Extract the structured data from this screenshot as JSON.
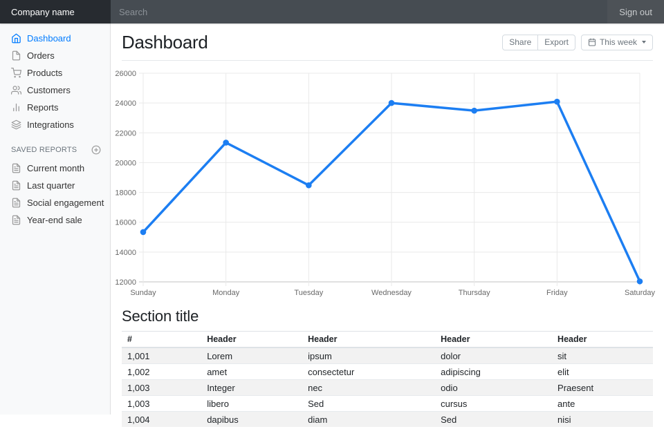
{
  "navbar": {
    "brand": "Company name",
    "search_placeholder": "Search",
    "sign_out": "Sign out"
  },
  "sidebar": {
    "items": [
      {
        "label": "Dashboard",
        "icon": "home-icon",
        "active": true
      },
      {
        "label": "Orders",
        "icon": "file-icon",
        "active": false
      },
      {
        "label": "Products",
        "icon": "shopping-cart-icon",
        "active": false
      },
      {
        "label": "Customers",
        "icon": "users-icon",
        "active": false
      },
      {
        "label": "Reports",
        "icon": "bar-chart-icon",
        "active": false
      },
      {
        "label": "Integrations",
        "icon": "layers-icon",
        "active": false
      }
    ],
    "saved_reports": {
      "title": "SAVED REPORTS",
      "items": [
        {
          "label": "Current month",
          "icon": "file-text-icon"
        },
        {
          "label": "Last quarter",
          "icon": "file-text-icon"
        },
        {
          "label": "Social engagement",
          "icon": "file-text-icon"
        },
        {
          "label": "Year-end sale",
          "icon": "file-text-icon"
        }
      ]
    }
  },
  "main": {
    "title": "Dashboard",
    "toolbar": {
      "share": "Share",
      "export": "Export",
      "period": "This week"
    },
    "section_title": "Section title"
  },
  "chart_data": {
    "type": "line",
    "title": "",
    "categories": [
      "Sunday",
      "Monday",
      "Tuesday",
      "Wednesday",
      "Thursday",
      "Friday",
      "Saturday"
    ],
    "values": [
      15339,
      21345,
      18483,
      24003,
      23489,
      24092,
      12034
    ],
    "xlabel": "",
    "ylabel": "",
    "ylim": [
      12000,
      26000
    ],
    "ytick_step": 2000,
    "grid": "on",
    "legend": "none",
    "line_color": "#1c7ef2",
    "point_color": "#1c7ef2",
    "grid_color": "#e9e9e9",
    "axis_line_color": "#c2c2c2",
    "tick_color": "#686868"
  },
  "table": {
    "headers": [
      "#",
      "Header",
      "Header",
      "Header",
      "Header"
    ],
    "rows": [
      [
        "1,001",
        "Lorem",
        "ipsum",
        "dolor",
        "sit"
      ],
      [
        "1,002",
        "amet",
        "consectetur",
        "adipiscing",
        "elit"
      ],
      [
        "1,003",
        "Integer",
        "nec",
        "odio",
        "Praesent"
      ],
      [
        "1,003",
        "libero",
        "Sed",
        "cursus",
        "ante"
      ],
      [
        "1,004",
        "dapibus",
        "diam",
        "Sed",
        "nisi"
      ]
    ]
  },
  "colors": {
    "accent": "#007bff",
    "navbar_bg": "#343a40",
    "brand_bg": "#272b30",
    "sidebar_bg": "#f8f9fa"
  }
}
